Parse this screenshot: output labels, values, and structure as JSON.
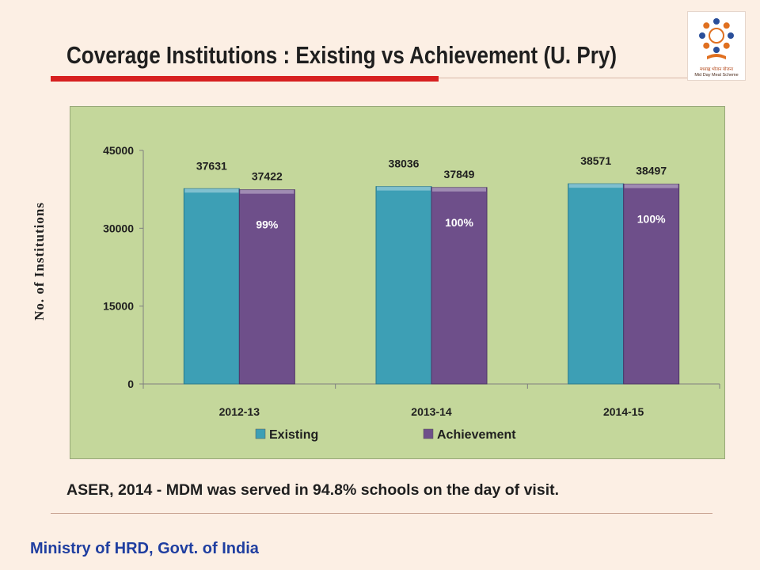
{
  "slide": {
    "title": "Coverage Institutions : Existing vs Achievement (U. Pry)",
    "note": "ASER, 2014 -  MDM was served in 94.8% schools on the day of visit.",
    "footer": "Ministry of HRD, Govt. of India"
  },
  "logo": {
    "line1": "मध्याह्न भोजन योजना",
    "line2": "Mid Day Meal Scheme"
  },
  "colors": {
    "existing": "#3d9fb5",
    "achievement": "#6e4f8a",
    "plot_background": "#c4d79b",
    "title_underline": "#d72020",
    "footer_text": "#1f3ea0"
  },
  "chart_data": {
    "type": "bar",
    "title": "",
    "xlabel": "",
    "ylabel": "No. of Institutions",
    "categories": [
      "2012-13",
      "2013-14",
      "2014-15"
    ],
    "series": [
      {
        "name": "Existing",
        "values": [
          37631,
          38036,
          38571
        ]
      },
      {
        "name": "Achievement",
        "values": [
          37422,
          37849,
          38497
        ]
      }
    ],
    "annotations": [
      "99%",
      "100%",
      "100%"
    ],
    "ylim": [
      0,
      45000
    ],
    "yticks": [
      0,
      15000,
      30000,
      45000
    ],
    "ytick_labels": [
      "0",
      "15000",
      "30000",
      "45000"
    ],
    "grid": false,
    "legend": "bottom"
  }
}
